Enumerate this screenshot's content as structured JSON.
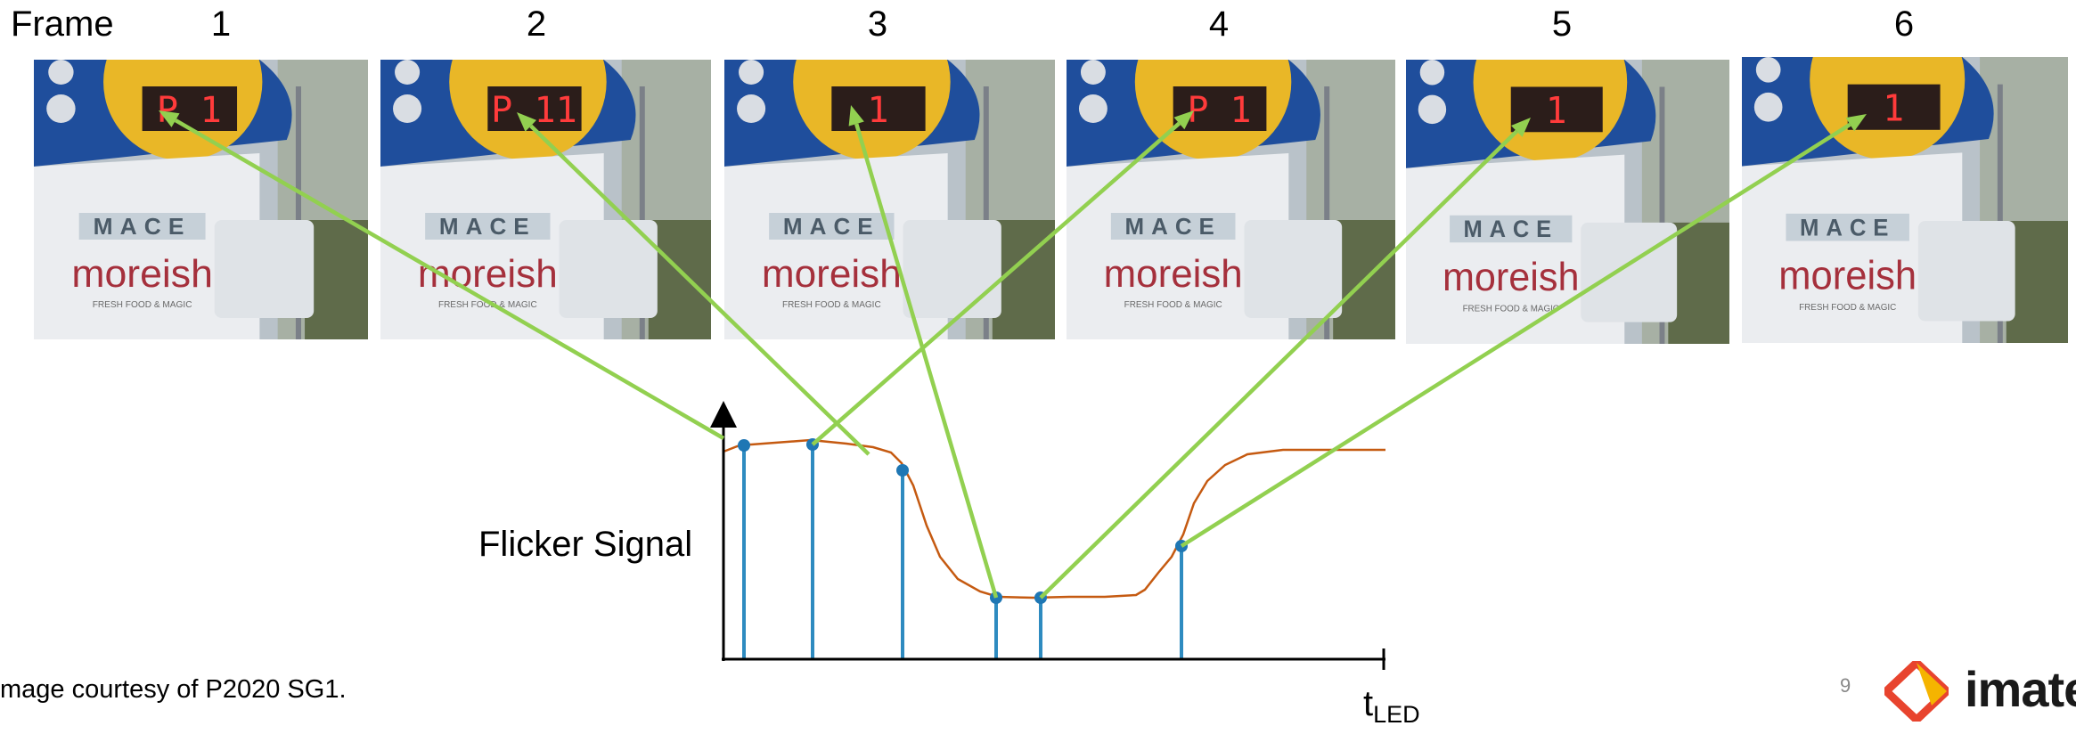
{
  "header": {
    "frame_label": "Frame",
    "frame_numbers": [
      "1",
      "2",
      "3",
      "4",
      "5",
      "6"
    ]
  },
  "frames": [
    {
      "display": "P 1",
      "sign_top": "MACE",
      "sign_main": "moreish",
      "sign_small": "FRESH FOOD & MAGIC"
    },
    {
      "display": "P 11",
      "sign_top": "MACE",
      "sign_main": "moreish",
      "sign_small": "FRESH FOOD & MAGIC"
    },
    {
      "display": "1",
      "sign_top": "MACE",
      "sign_main": "moreish",
      "sign_small": "FRESH FOOD & MAGIC"
    },
    {
      "display": "P 1",
      "sign_top": "MACE",
      "sign_main": "moreish",
      "sign_small": "FRESH FOOD & MAGIC"
    },
    {
      "display": "1",
      "sign_top": "MACE",
      "sign_main": "moreish",
      "sign_small": "FRESH FOOD & MAGIC"
    },
    {
      "display": "1",
      "sign_top": "MACE",
      "sign_main": "moreish",
      "sign_small": "FRESH FOOD & MAGIC"
    }
  ],
  "signal": {
    "label": "Flicker Signal",
    "axis_label": "t",
    "axis_label_sub": "LED",
    "curve_color": "#c55a11",
    "stem_color": "#2e8bc0",
    "arrow_color": "#92d050",
    "axis_color": "#000000"
  },
  "footer": {
    "credit": "mage courtesy of P2020 SG1.",
    "page_number": "9",
    "logo_text": "imate"
  }
}
